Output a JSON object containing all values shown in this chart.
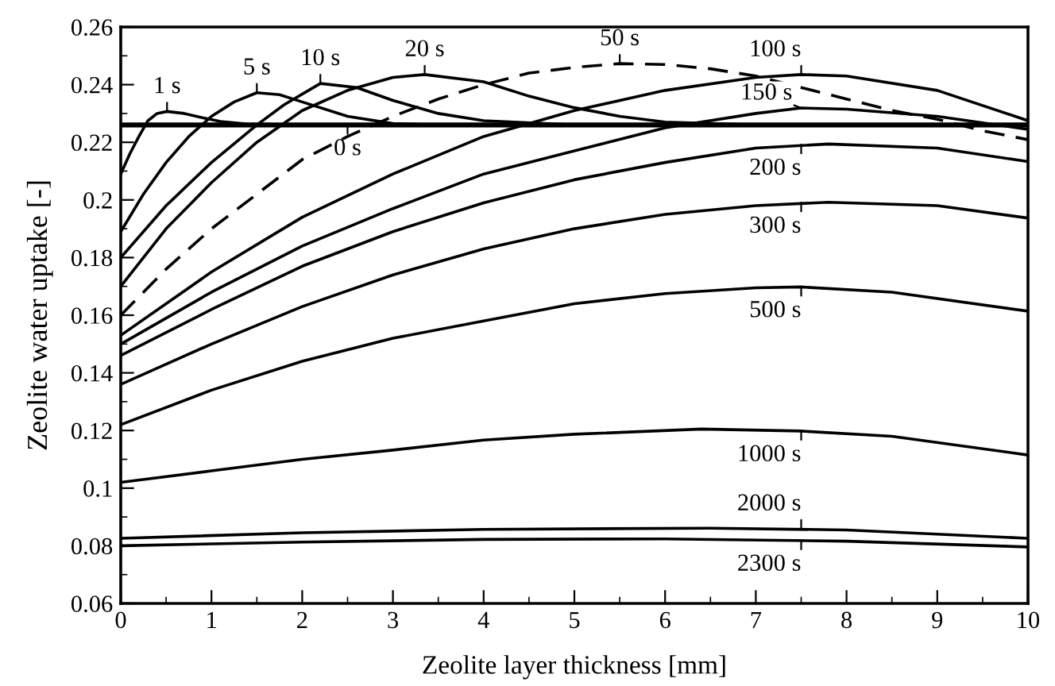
{
  "chart_data": {
    "type": "line",
    "xlabel": "Zeolite layer thickness [mm]",
    "ylabel": "Zeolite water uptake [-]",
    "xlim": [
      0,
      10
    ],
    "ylim": [
      0.06,
      0.26
    ],
    "xticks": [
      0,
      1,
      2,
      3,
      4,
      5,
      6,
      7,
      8,
      9,
      10
    ],
    "yticks": [
      0.06,
      0.08,
      0.1,
      0.12,
      0.14,
      0.16,
      0.18,
      0.2,
      0.22,
      0.24,
      0.26
    ],
    "grid": false,
    "legend": false,
    "marker": "none",
    "line_style": "solid",
    "series": [
      {
        "color": "#000000",
        "x": [
          0,
          10
        ],
        "values": [
          0.226,
          0.226
        ]
      },
      {
        "color": "#000000",
        "x": [
          0,
          0.1,
          0.2,
          0.3,
          0.4,
          0.51,
          0.7,
          0.9,
          1.1,
          1.4,
          2,
          10
        ],
        "values": [
          0.209,
          0.216,
          0.222,
          0.2275,
          0.23,
          0.2307,
          0.23,
          0.2285,
          0.2272,
          0.2263,
          0.226,
          0.226
        ]
      },
      {
        "color": "#000000",
        "x": [
          0,
          0.25,
          0.5,
          0.75,
          1,
          1.25,
          1.5,
          1.75,
          2,
          2.5,
          3,
          3.5,
          10
        ],
        "values": [
          0.189,
          0.202,
          0.213,
          0.222,
          0.229,
          0.234,
          0.2372,
          0.2365,
          0.234,
          0.229,
          0.2265,
          0.226,
          0.226
        ]
      },
      {
        "color": "#000000",
        "x": [
          0,
          0.5,
          1,
          1.5,
          1.8,
          2.2,
          2.6,
          3,
          3.5,
          4,
          5,
          10
        ],
        "values": [
          0.18,
          0.198,
          0.213,
          0.226,
          0.233,
          0.2404,
          0.239,
          0.2345,
          0.23,
          0.2275,
          0.226,
          0.226
        ]
      },
      {
        "color": "#000000",
        "x": [
          0,
          0.5,
          1,
          1.5,
          2,
          2.5,
          3,
          3.35,
          4,
          4.5,
          5,
          5.5,
          6,
          7,
          10
        ],
        "values": [
          0.17,
          0.19,
          0.206,
          0.22,
          0.231,
          0.238,
          0.2425,
          0.2435,
          0.241,
          0.236,
          0.232,
          0.229,
          0.227,
          0.226,
          0.226
        ]
      },
      {
        "color": "#000000",
        "line_style": "dashed",
        "x": [
          0,
          0.5,
          1,
          1.5,
          2,
          2.5,
          3,
          3.5,
          4,
          4.5,
          5,
          5.5,
          6,
          6.5,
          7,
          7.5,
          8,
          8.5,
          9,
          9.5,
          10
        ],
        "values": [
          0.16,
          0.176,
          0.19,
          0.202,
          0.214,
          0.222,
          0.229,
          0.235,
          0.24,
          0.244,
          0.246,
          0.2473,
          0.247,
          0.2455,
          0.243,
          0.239,
          0.235,
          0.231,
          0.228,
          0.224,
          0.2209
        ]
      },
      {
        "color": "#000000",
        "x": [
          0,
          1,
          2,
          3,
          4,
          5,
          6,
          7,
          7.5,
          8,
          9,
          10
        ],
        "values": [
          0.153,
          0.175,
          0.194,
          0.209,
          0.222,
          0.231,
          0.238,
          0.2425,
          0.2435,
          0.243,
          0.238,
          0.2275
        ]
      },
      {
        "color": "#000000",
        "x": [
          0,
          1,
          2,
          3,
          4,
          5,
          6,
          7,
          7.5,
          8,
          9,
          10
        ],
        "values": [
          0.15,
          0.168,
          0.184,
          0.197,
          0.209,
          0.217,
          0.225,
          0.23,
          0.2319,
          0.2315,
          0.229,
          0.2245
        ]
      },
      {
        "color": "#000000",
        "x": [
          0,
          1,
          2,
          3,
          4,
          5,
          6,
          7,
          7.8,
          9,
          10
        ],
        "values": [
          0.146,
          0.162,
          0.177,
          0.189,
          0.199,
          0.207,
          0.213,
          0.218,
          0.2194,
          0.218,
          0.2133
        ]
      },
      {
        "color": "#000000",
        "x": [
          0,
          1,
          2,
          3,
          4,
          5,
          6,
          7,
          7.8,
          9,
          10
        ],
        "values": [
          0.136,
          0.15,
          0.163,
          0.174,
          0.183,
          0.19,
          0.195,
          0.198,
          0.1992,
          0.198,
          0.1937
        ]
      },
      {
        "color": "#000000",
        "x": [
          0,
          1,
          2,
          3,
          4,
          5,
          6,
          7,
          7.5,
          8.5,
          10
        ],
        "values": [
          0.122,
          0.134,
          0.144,
          0.152,
          0.158,
          0.164,
          0.1675,
          0.1695,
          0.1698,
          0.168,
          0.1614
        ]
      },
      {
        "color": "#000000",
        "x": [
          0,
          1,
          2,
          3,
          4,
          5,
          6.4,
          7.5,
          8.5,
          10
        ],
        "values": [
          0.102,
          0.106,
          0.11,
          0.1132,
          0.1167,
          0.1187,
          0.1205,
          0.1198,
          0.118,
          0.1115
        ]
      },
      {
        "color": "#000000",
        "x": [
          0,
          2,
          4,
          6.5,
          8,
          10
        ],
        "values": [
          0.0826,
          0.0845,
          0.0857,
          0.0861,
          0.0855,
          0.0826
        ]
      },
      {
        "color": "#000000",
        "x": [
          0,
          2,
          4,
          6,
          8,
          10
        ],
        "values": [
          0.08,
          0.0813,
          0.0822,
          0.0824,
          0.0816,
          0.0796
        ]
      }
    ],
    "annotations": [
      {
        "text": "1 s",
        "x": 0.51,
        "y": 0.2307
      },
      {
        "text": "0 s",
        "x": 2.5,
        "y": 0.226
      },
      {
        "text": "5 s",
        "x": 1.5,
        "y": 0.2372
      },
      {
        "text": "10 s",
        "x": 2.2,
        "y": 0.2404
      },
      {
        "text": "20 s",
        "x": 3.35,
        "y": 0.2435
      },
      {
        "text": "50 s",
        "x": 5.5,
        "y": 0.2473
      },
      {
        "text": "100 s",
        "x": 7.5,
        "y": 0.2435
      },
      {
        "text": "150 s",
        "x": 7.5,
        "y": 0.2319
      },
      {
        "text": "200 s",
        "x": 7.5,
        "y": 0.2192
      },
      {
        "text": "300 s",
        "x": 7.5,
        "y": 0.1991
      },
      {
        "text": "500 s",
        "x": 7.5,
        "y": 0.1698
      },
      {
        "text": "1000 s",
        "x": 7.5,
        "y": 0.1198
      },
      {
        "text": "2000 s",
        "x": 7.5,
        "y": 0.0859
      },
      {
        "text": "2300 s",
        "x": 7.5,
        "y": 0.0818
      }
    ]
  }
}
